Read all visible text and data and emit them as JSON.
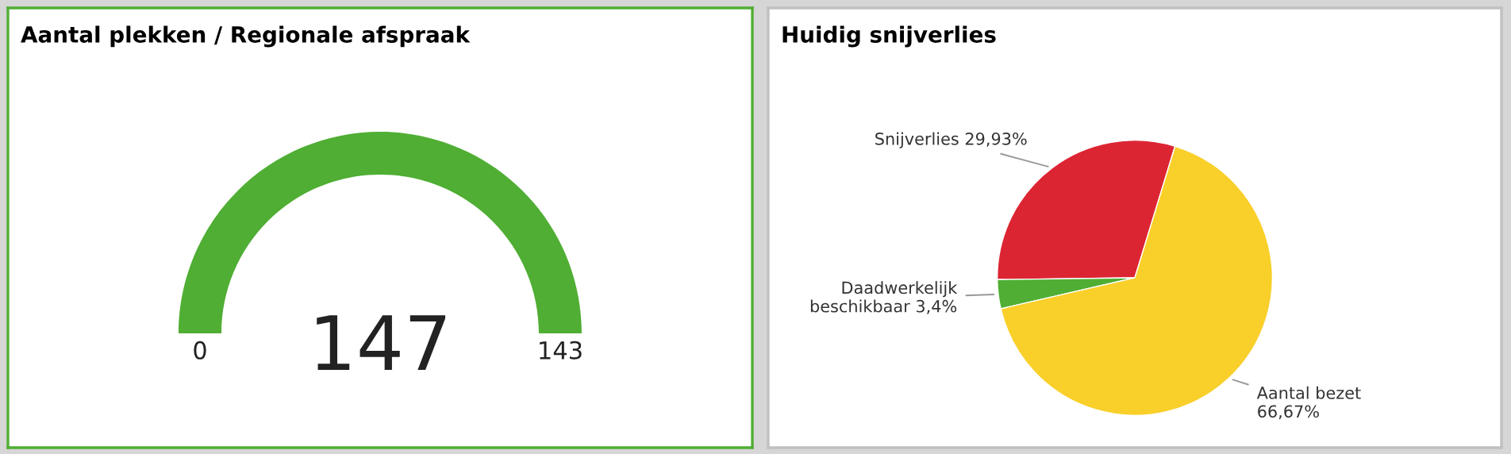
{
  "chart_data": [
    {
      "type": "other",
      "title": "Aantal plekken / Regionale afspraak",
      "annotations": [
        "0",
        "147",
        "143"
      ],
      "color": "#4fae33"
    },
    {
      "type": "pie",
      "title": "Huidig snijverlies",
      "categories": [
        "Snijverlies",
        "Daadwerkelijk beschikbaar",
        "Aantal bezet"
      ],
      "values": [
        29.93,
        3.4,
        66.67
      ],
      "value_labels": [
        "29,93%",
        "3,4%",
        "66,67%"
      ],
      "colors": [
        "#dc2533",
        "#4fae33",
        "#f9cf2a"
      ]
    }
  ]
}
